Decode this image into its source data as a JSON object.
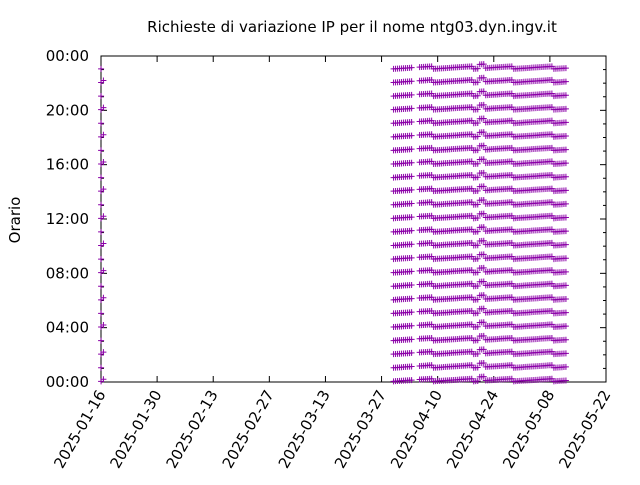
{
  "chart_data": {
    "type": "scatter",
    "title": "Richieste di variazione IP per il nome ntg03.dyn.ingv.it",
    "xlabel": "",
    "ylabel": "Orario",
    "x_axis": {
      "min": "2025-01-16",
      "max": "2025-05-22",
      "ticks": [
        "2025-01-16",
        "2025-01-30",
        "2025-02-13",
        "2025-02-27",
        "2025-03-13",
        "2025-03-27",
        "2025-04-10",
        "2025-04-24",
        "2025-05-08",
        "2025-05-22"
      ]
    },
    "y_axis": {
      "min_hours": 0,
      "max_hours": 24,
      "ticks": [
        "00:00",
        "04:00",
        "08:00",
        "12:00",
        "16:00",
        "20:00",
        "00:00"
      ]
    },
    "grid": false,
    "legend": "none",
    "marker": "+",
    "series": [
      {
        "color": "#8b00a8",
        "note_visible_pattern": "approximately hourly requests",
        "points_approx": {
          "early_column": {
            "date": "2025-01-16",
            "hours": "every ~1h from 00:00 to 23:00"
          },
          "dense_block": {
            "from": "2025-03-30",
            "to": "2025-05-12",
            "hours": "every ~1h, minutes shifting slowly"
          }
        },
        "gap": {
          "from": "2025-04-04",
          "to": "2025-04-05"
        }
      }
    ],
    "colors": {
      "marks": "#8b00a8",
      "axis": "#000000"
    }
  }
}
